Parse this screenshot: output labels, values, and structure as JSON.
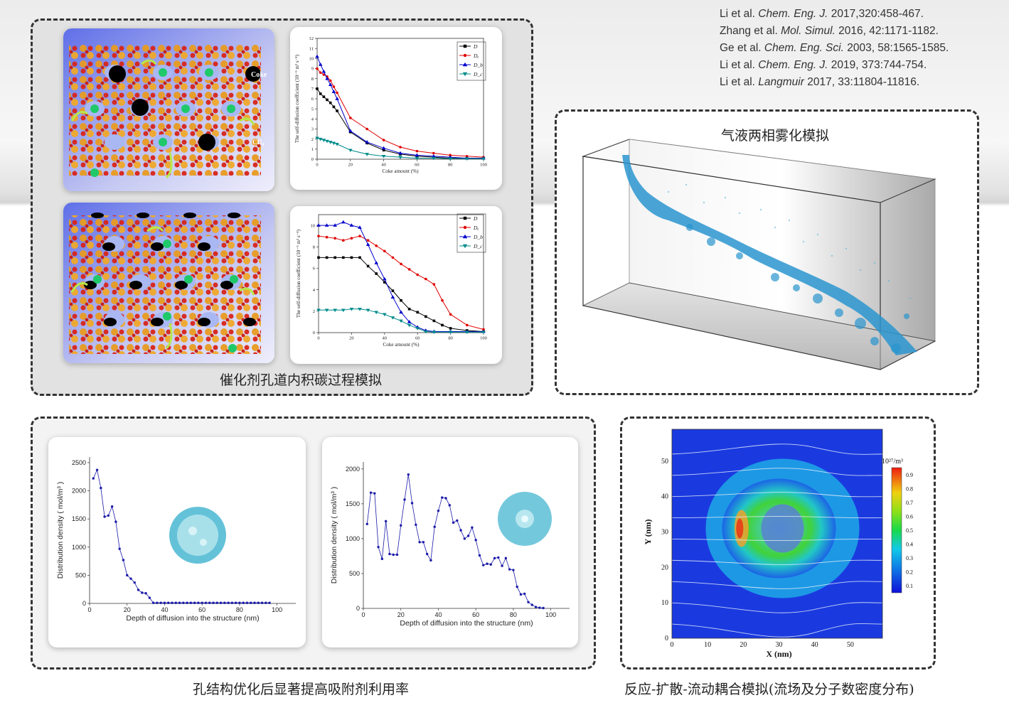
{
  "references": [
    {
      "authors": "Li et al.",
      "journal": "Chem. Eng. J.",
      "rest": " 2017,320:458-467."
    },
    {
      "authors": "Zhang et al.",
      "journal": "Mol. Simul.",
      "rest": " 2016, 42:1171-1182."
    },
    {
      "authors": "Ge et al.",
      "journal": "Chem. Eng. Sci.",
      "rest": " 2003, 58:1565-1585."
    },
    {
      "authors": "Li et al.",
      "journal": "Chem. Eng. J.",
      "rest": " 2019, 373:744-754."
    },
    {
      "authors": "Li et al.",
      "journal": "Langmuir",
      "rest": " 2017, 33:11804-11816."
    }
  ],
  "captions": {
    "coke": "催化剂孔道内积碳过程模拟",
    "atomization": "气液两相雾化模拟",
    "pore": "孔结构优化后显著提高吸附剂利用率",
    "reaction": "反应-扩散-流动耦合模拟(流场及分子数密度分布)"
  },
  "molecule_labels": {
    "coke": "Coke",
    "ch4": "CH₄"
  },
  "chart_data": [
    {
      "type": "line",
      "title": "",
      "xlabel": "Coke amount (%)",
      "ylabel": "The self-diffusion coefficient (10⁻⁹ m² s⁻¹)",
      "xlim": [
        0,
        100
      ],
      "ylim": [
        0,
        12
      ],
      "xticks": [
        0,
        20,
        40,
        60,
        80,
        100
      ],
      "yticks": [
        0,
        1,
        2,
        3,
        4,
        5,
        6,
        7,
        8,
        9,
        10,
        11,
        12
      ],
      "series": [
        {
          "name": "D",
          "color": "#000000",
          "marker": "square",
          "x": [
            0,
            2,
            4,
            6,
            8,
            10,
            12,
            20,
            30,
            40,
            50,
            60,
            70,
            80,
            90,
            100
          ],
          "y": [
            7,
            6.5,
            6.2,
            5.9,
            5.6,
            5.2,
            4.8,
            2.7,
            1.6,
            0.9,
            0.5,
            0.3,
            0.2,
            0.1,
            0.1,
            0.1
          ]
        },
        {
          "name": "Dₐ",
          "color": "#e00000",
          "marker": "circle",
          "x": [
            0,
            2,
            4,
            6,
            8,
            10,
            12,
            20,
            30,
            40,
            50,
            60,
            70,
            80,
            90,
            100
          ],
          "y": [
            9,
            8.6,
            8.4,
            8.2,
            7.8,
            7.2,
            6.6,
            4.1,
            3.0,
            1.9,
            1.2,
            0.8,
            0.6,
            0.4,
            0.3,
            0.2
          ]
        },
        {
          "name": "D_b",
          "color": "#0000cc",
          "marker": "triangle",
          "x": [
            0,
            2,
            4,
            6,
            8,
            10,
            12,
            20,
            30,
            40,
            50,
            60,
            70,
            80,
            90,
            100
          ],
          "y": [
            10.2,
            9.4,
            8.7,
            8.0,
            7.4,
            6.7,
            6.0,
            2.8,
            1.7,
            1.1,
            0.6,
            0.4,
            0.3,
            0.2,
            0.1,
            0.1
          ]
        },
        {
          "name": "D_c",
          "color": "#008b8b",
          "marker": "triangle-down",
          "x": [
            0,
            2,
            4,
            6,
            8,
            10,
            12,
            20,
            30,
            40,
            50,
            60,
            70,
            80,
            90,
            100
          ],
          "y": [
            2.1,
            2.0,
            1.9,
            1.8,
            1.7,
            1.6,
            1.5,
            0.9,
            0.5,
            0.3,
            0.2,
            0.1,
            0.1,
            0.05,
            0.05,
            0.05
          ]
        }
      ]
    },
    {
      "type": "line",
      "title": "",
      "xlabel": "Coke amount (%)",
      "ylabel": "The self-diffusion coefficient (10⁻⁹ m² s⁻¹)",
      "xlim": [
        0,
        100
      ],
      "ylim": [
        0,
        11
      ],
      "xticks": [
        0,
        20,
        40,
        60,
        80,
        100
      ],
      "yticks": [
        0,
        2,
        4,
        6,
        8,
        10
      ],
      "series": [
        {
          "name": "D",
          "color": "#000000",
          "marker": "square",
          "x": [
            0,
            5,
            10,
            15,
            20,
            25,
            30,
            35,
            40,
            45,
            50,
            55,
            60,
            65,
            70,
            75,
            80,
            90,
            100
          ],
          "y": [
            7,
            7,
            7,
            7,
            7,
            7,
            6.2,
            5.5,
            4.7,
            3.9,
            3.0,
            2.2,
            1.9,
            1.5,
            1.1,
            0.7,
            0.4,
            0.2,
            0.1
          ]
        },
        {
          "name": "Dₐ",
          "color": "#e00000",
          "marker": "circle",
          "x": [
            0,
            5,
            10,
            15,
            20,
            25,
            30,
            35,
            40,
            45,
            50,
            55,
            60,
            65,
            70,
            75,
            80,
            90,
            100
          ],
          "y": [
            9,
            8.9,
            8.8,
            8.6,
            8.8,
            9.0,
            8.6,
            8.1,
            7.6,
            7.0,
            6.4,
            5.9,
            5.4,
            5.0,
            4.5,
            3.0,
            1.7,
            0.7,
            0.3
          ]
        },
        {
          "name": "D_b",
          "color": "#0000cc",
          "marker": "triangle",
          "x": [
            0,
            5,
            10,
            15,
            20,
            25,
            30,
            35,
            40,
            45,
            50,
            55,
            60,
            65,
            70,
            80,
            90,
            100
          ],
          "y": [
            10,
            10,
            10,
            10.3,
            10,
            9.8,
            8.2,
            6.5,
            5.0,
            3.3,
            1.9,
            1.0,
            0.5,
            0.2,
            0.1,
            0.1,
            0.1,
            0.1
          ]
        },
        {
          "name": "D_c",
          "color": "#008b8b",
          "marker": "triangle-down",
          "x": [
            0,
            5,
            10,
            15,
            20,
            25,
            30,
            35,
            40,
            45,
            50,
            55,
            60,
            65,
            70,
            80,
            90,
            100
          ],
          "y": [
            2.1,
            2.1,
            2.1,
            2.1,
            2.2,
            2.2,
            2.1,
            1.9,
            1.7,
            1.4,
            1.1,
            0.7,
            0.4,
            0.1,
            0.05,
            0.05,
            0.05,
            0.05
          ]
        }
      ]
    },
    {
      "type": "line",
      "title": "",
      "xlabel": "Depth of diffusion into the structure (nm)",
      "ylabel": "Distribution density ( mol/m³ )",
      "xlim": [
        0,
        110
      ],
      "ylim": [
        0,
        2600
      ],
      "xticks": [
        0,
        20,
        40,
        60,
        80,
        100
      ],
      "yticks": [
        0,
        500,
        1000,
        1500,
        2000,
        2500
      ],
      "series": [
        {
          "name": "",
          "color": "#1a1aa8",
          "marker": "circle",
          "x": [
            2,
            4,
            6,
            8,
            10,
            12,
            14,
            16,
            18,
            20,
            22,
            24,
            26,
            28,
            30,
            32,
            34,
            36,
            38,
            40,
            42,
            44,
            46,
            48,
            50,
            52,
            54,
            56,
            58,
            60,
            62,
            64,
            66,
            68,
            70,
            72,
            74,
            76,
            78,
            80,
            82,
            84,
            86,
            88,
            90,
            92,
            94,
            96
          ],
          "y": [
            2220,
            2370,
            2050,
            1540,
            1560,
            1720,
            1450,
            970,
            770,
            500,
            440,
            370,
            240,
            190,
            180,
            100,
            10,
            10,
            10,
            10,
            10,
            10,
            10,
            10,
            10,
            10,
            10,
            10,
            10,
            10,
            10,
            10,
            10,
            10,
            10,
            10,
            10,
            10,
            10,
            10,
            10,
            10,
            10,
            10,
            10,
            10,
            10,
            10
          ]
        }
      ]
    },
    {
      "type": "line",
      "title": "",
      "xlabel": "Depth of diffusion into the structure (nm)",
      "ylabel": "Distribution density ( mol/m³ )",
      "xlim": [
        0,
        110
      ],
      "ylim": [
        0,
        2100
      ],
      "xticks": [
        0,
        20,
        40,
        60,
        80,
        100
      ],
      "yticks": [
        0,
        500,
        1000,
        1500,
        2000
      ],
      "series": [
        {
          "name": "",
          "color": "#1a1aa8",
          "marker": "circle",
          "x": [
            2,
            4,
            6,
            8,
            10,
            12,
            14,
            16,
            18,
            20,
            22,
            24,
            26,
            28,
            30,
            32,
            34,
            36,
            38,
            40,
            42,
            44,
            46,
            48,
            50,
            52,
            54,
            56,
            58,
            60,
            62,
            64,
            66,
            68,
            70,
            72,
            74,
            76,
            78,
            80,
            82,
            84,
            86,
            88,
            90,
            92,
            94,
            96
          ],
          "y": [
            1210,
            1660,
            1650,
            880,
            710,
            1250,
            780,
            770,
            770,
            1190,
            1560,
            1920,
            1510,
            1200,
            950,
            950,
            780,
            690,
            1170,
            1400,
            1590,
            1580,
            1480,
            1230,
            1260,
            1120,
            1000,
            1040,
            1160,
            980,
            760,
            620,
            640,
            630,
            720,
            730,
            610,
            720,
            560,
            550,
            310,
            200,
            210,
            90,
            50,
            20,
            10,
            5
          ]
        }
      ]
    },
    {
      "type": "heatmap",
      "title": "",
      "xlabel": "X (nm)",
      "ylabel": "Y (nm)",
      "xlim": [
        0,
        59
      ],
      "ylim": [
        0,
        59
      ],
      "xticks": [
        0,
        10,
        20,
        30,
        40,
        50
      ],
      "yticks": [
        0,
        10,
        20,
        30,
        40,
        50
      ],
      "colorbar": {
        "label": "10²⁷/m³",
        "ticks": [
          0.1,
          0.2,
          0.3,
          0.4,
          0.5,
          0.6,
          0.7,
          0.8,
          0.9
        ]
      }
    }
  ]
}
